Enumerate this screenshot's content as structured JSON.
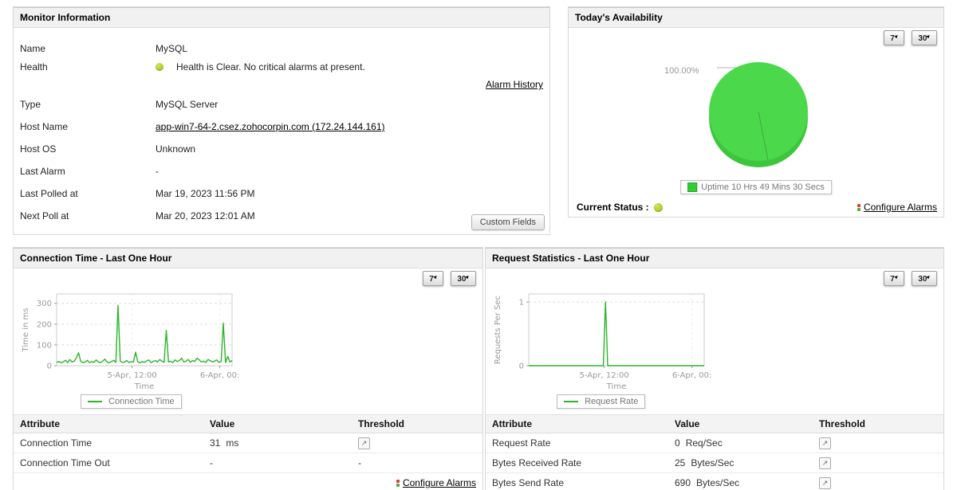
{
  "range_buttons": [
    "7",
    "30"
  ],
  "colors": {
    "chart_line_green": "#2cb52c",
    "pie_green": "#4bd94b",
    "status_dot_green": "#9abf0e",
    "legend_square_green": "#33cc33"
  },
  "panels": {
    "monitor": {
      "title": "Monitor Information",
      "rows": [
        {
          "label": "Name",
          "value": "MySQL",
          "type": "text"
        },
        {
          "label": "Health",
          "value": "Health is Clear. No critical alarms at present.",
          "type": "health",
          "link": "Alarm History"
        },
        {
          "label": "Type",
          "value": "MySQL Server",
          "type": "text"
        },
        {
          "label": "Host Name",
          "value": "app-win7-64-2.csez.zohocorpin.com (172.24.144.161)",
          "type": "link"
        },
        {
          "label": "Host OS",
          "value": "Unknown",
          "type": "text"
        },
        {
          "label": "Last Alarm",
          "value": "-",
          "type": "text"
        },
        {
          "label": "Last Polled at",
          "value": "Mar 19, 2023 11:56 PM",
          "type": "text"
        },
        {
          "label": "Next Poll at",
          "value": "Mar 20, 2023 12:01 AM",
          "type": "text"
        }
      ],
      "custom_fields_label": "Custom Fields"
    },
    "availability": {
      "title": "Today's Availability",
      "current_status_label": "Current Status :",
      "configure_alarms_label": "Configure Alarms"
    },
    "connection": {
      "title": "Connection Time - Last One Hour",
      "table": {
        "headers": [
          "Attribute",
          "Value",
          "Threshold"
        ],
        "rows": [
          {
            "attribute": "Connection Time",
            "value": "31",
            "unit": "ms",
            "threshold": "icon"
          },
          {
            "attribute": "Connection Time Out",
            "value": "-",
            "unit": "",
            "threshold": "-"
          }
        ]
      },
      "configure_alarms_label": "Configure Alarms"
    },
    "request": {
      "title": "Request Statistics - Last One Hour",
      "table": {
        "headers": [
          "Attribute",
          "Value",
          "Threshold"
        ],
        "rows": [
          {
            "attribute": "Request Rate",
            "value": "0",
            "unit": "Req/Sec",
            "threshold": "icon"
          },
          {
            "attribute": "Bytes Received Rate",
            "value": "25",
            "unit": "Bytes/Sec",
            "threshold": "icon"
          },
          {
            "attribute": "Bytes Send Rate",
            "value": "690",
            "unit": "Bytes/Sec",
            "threshold": "icon"
          }
        ]
      }
    }
  },
  "chart_data": [
    {
      "type": "line",
      "id": "connection-time",
      "title": "Connection Time - Last One Hour",
      "xlabel": "Time",
      "ylabel": "Time in ms",
      "ylim": [
        0,
        345
      ],
      "yticks": [
        0,
        100,
        200,
        300
      ],
      "xticks": [
        {
          "pos": 0.43,
          "label": "5-Apr, 12:00"
        },
        {
          "pos": 0.93,
          "label": "6-Apr, 00:"
        }
      ],
      "legend": "Connection Time",
      "color": "#2cb52c",
      "values": [
        16,
        20,
        14,
        18,
        26,
        15,
        30,
        18,
        22,
        38,
        62,
        20,
        15,
        18,
        26,
        14,
        20,
        16,
        28,
        18,
        15,
        22,
        32,
        18,
        14,
        20,
        26,
        16,
        290,
        22,
        16,
        18,
        25,
        15,
        20,
        18,
        65,
        18,
        14,
        20,
        16,
        22,
        28,
        15,
        20,
        25,
        18,
        30,
        22,
        16,
        170,
        18,
        22,
        15,
        28,
        20,
        25,
        36,
        18,
        22,
        30,
        16,
        25,
        20,
        36,
        28,
        18,
        22,
        15,
        30,
        25,
        18,
        22,
        28,
        16,
        20,
        205,
        15,
        45,
        18,
        25
      ]
    },
    {
      "type": "line",
      "id": "request-rate",
      "title": "Request Statistics - Last One Hour",
      "xlabel": "Time",
      "ylabel": "Requests Per Sec",
      "ylim": [
        0,
        1.125
      ],
      "yticks": [
        0,
        1
      ],
      "xticks": [
        {
          "pos": 0.43,
          "label": "5-Apr, 12:00"
        },
        {
          "pos": 0.93,
          "label": "6-Apr, 00:"
        }
      ],
      "legend": "Request Rate",
      "color": "#2cb52c",
      "values": [
        0,
        0,
        0,
        0,
        0,
        0,
        0,
        0,
        0,
        0,
        0,
        0,
        0,
        0,
        0,
        0,
        0,
        0,
        0,
        0,
        0,
        0,
        0,
        0,
        0,
        0,
        0,
        0,
        0,
        0,
        0,
        0,
        0,
        0,
        0,
        1,
        0,
        0,
        0,
        0,
        0,
        0,
        0,
        0,
        0,
        0,
        0,
        0,
        0,
        0,
        0,
        0,
        0,
        0,
        0,
        0,
        0,
        0,
        0,
        0,
        0,
        0,
        0,
        0,
        0,
        0,
        0,
        0,
        0,
        0,
        0,
        0,
        0,
        0,
        0,
        0,
        0,
        0,
        0,
        0,
        0
      ]
    },
    {
      "type": "pie",
      "id": "availability",
      "callout_label": "100.00%",
      "slices": [
        {
          "label": "Uptime 10 Hrs 49 Mins 30 Secs",
          "value": 100.0,
          "color": "#4bd94b"
        }
      ]
    }
  ]
}
